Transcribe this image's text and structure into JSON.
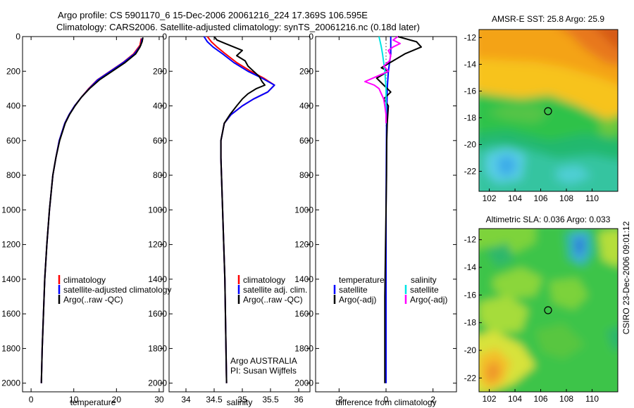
{
  "header": {
    "line1": "Argo profile: CS 5901170_6 15-Dec-2006 20061216_224 17.369S 106.595E",
    "line2": "Climatology: CARS2006. Satellite-adjusted climatology: synTS_20061216.nc (0.18d later)"
  },
  "side_label": "CSIRO 23-Dec-2006 09:01:12",
  "credits": {
    "line1": "Argo AUSTRALIA",
    "line2": "PI: Susan Wijffels"
  },
  "colors": {
    "climatology": "#ff0000",
    "satellite": "#0000ff",
    "argo": "#000000",
    "salinity_satellite": "#00e5e5",
    "salinity_argo": "#ff00ff"
  },
  "chart_data": [
    {
      "type": "line",
      "id": "temperature",
      "xlabel": "temperature",
      "ylabel": "",
      "xlim": [
        -2,
        31
      ],
      "ylim": [
        2050,
        0
      ],
      "y_reversed": true,
      "xticks": [
        0,
        10,
        20,
        30
      ],
      "yticks": [
        0,
        200,
        400,
        600,
        800,
        1000,
        1200,
        1400,
        1600,
        1800,
        2000
      ],
      "legend": {
        "position": "lower-left",
        "entries": [
          "climatology",
          "satellite-adjusted climatology",
          "Argo(..raw -QC)"
        ]
      },
      "series": [
        {
          "name": "climatology",
          "color": "#ff0000",
          "y": [
            10,
            50,
            100,
            150,
            200,
            250,
            300,
            350,
            400,
            450,
            500,
            600,
            700,
            800,
            1000,
            1200,
            1400,
            1600,
            1800,
            2000
          ],
          "x": [
            25.8,
            25.5,
            24.0,
            21.5,
            18.5,
            15.5,
            13.5,
            11.8,
            10.2,
            8.9,
            7.9,
            6.6,
            5.8,
            5.1,
            4.3,
            3.7,
            3.2,
            2.9,
            2.6,
            2.4
          ]
        },
        {
          "name": "satellite-adjusted climatology",
          "color": "#0000ff",
          "y": [
            10,
            50,
            100,
            150,
            200,
            250,
            300,
            350,
            400,
            450,
            500,
            600,
            700,
            800,
            1000,
            1200,
            1400,
            1600,
            1800,
            2000
          ],
          "x": [
            26.0,
            25.7,
            24.2,
            21.6,
            18.6,
            15.6,
            13.6,
            11.8,
            10.2,
            8.9,
            7.9,
            6.6,
            5.8,
            5.1,
            4.3,
            3.7,
            3.2,
            2.9,
            2.6,
            2.4
          ]
        },
        {
          "name": "Argo(..raw -QC)",
          "color": "#000000",
          "y": [
            5,
            30,
            60,
            100,
            150,
            200,
            250,
            300,
            350,
            400,
            450,
            500,
            600,
            700,
            800,
            1000,
            1200,
            1400,
            1600,
            1800,
            2000
          ],
          "x": [
            26.2,
            26.0,
            25.5,
            24.5,
            22.0,
            19.0,
            16.0,
            13.7,
            11.8,
            10.3,
            9.0,
            8.0,
            6.7,
            5.8,
            5.1,
            4.3,
            3.7,
            3.2,
            2.9,
            2.6,
            2.4
          ]
        }
      ]
    },
    {
      "type": "line",
      "id": "salinity",
      "xlabel": "salinity",
      "ylabel": "",
      "xlim": [
        33.7,
        36.2
      ],
      "ylim": [
        2050,
        0
      ],
      "y_reversed": true,
      "xticks": [
        34,
        34.5,
        35,
        35.5,
        36
      ],
      "yticks": [
        0,
        200,
        400,
        600,
        800,
        1000,
        1200,
        1400,
        1600,
        1800,
        2000
      ],
      "legend": {
        "position": "lower-left",
        "entries": [
          "climatology",
          "satellite adj. clim.",
          "Argo(..raw -QC)"
        ]
      },
      "series": [
        {
          "name": "climatology",
          "color": "#ff0000",
          "y": [
            0,
            30,
            60,
            100,
            150,
            200,
            240,
            280,
            320,
            360,
            400,
            450,
            500,
            600,
            700,
            800,
            1000,
            1200,
            1400,
            1600,
            1800,
            2000
          ],
          "x": [
            34.38,
            34.45,
            34.55,
            34.7,
            34.9,
            35.15,
            35.38,
            35.57,
            35.45,
            35.2,
            35.0,
            34.8,
            34.68,
            34.62,
            34.62,
            34.63,
            34.65,
            34.67,
            34.69,
            34.7,
            34.71,
            34.72
          ]
        },
        {
          "name": "satellite adj. clim.",
          "color": "#0000ff",
          "y": [
            0,
            30,
            60,
            100,
            150,
            200,
            240,
            280,
            320,
            360,
            400,
            450,
            500,
            600,
            700,
            800,
            1000,
            1200,
            1400,
            1600,
            1800,
            2000
          ],
          "x": [
            34.32,
            34.38,
            34.48,
            34.65,
            34.85,
            35.1,
            35.35,
            35.57,
            35.45,
            35.2,
            35.0,
            34.8,
            34.68,
            34.62,
            34.62,
            34.63,
            34.65,
            34.67,
            34.69,
            34.7,
            34.71,
            34.72
          ]
        },
        {
          "name": "Argo(..raw -QC)",
          "color": "#000000",
          "y": [
            0,
            20,
            40,
            60,
            80,
            110,
            140,
            170,
            200,
            230,
            260,
            280,
            300,
            330,
            360,
            400,
            450,
            500,
            600,
            700,
            800,
            1000,
            1200,
            1400,
            1600,
            1800,
            2000
          ],
          "x": [
            34.5,
            34.55,
            34.7,
            34.85,
            35.0,
            34.9,
            35.05,
            35.1,
            35.2,
            35.3,
            35.35,
            35.4,
            35.25,
            35.1,
            35.0,
            34.9,
            34.78,
            34.68,
            34.62,
            34.62,
            34.63,
            34.65,
            34.67,
            34.69,
            34.7,
            34.71,
            34.72
          ]
        }
      ]
    },
    {
      "type": "line",
      "id": "difference",
      "xlabel": "difference from climatology",
      "ylabel": "",
      "xlim": [
        -3,
        3
      ],
      "ylim": [
        2050,
        0
      ],
      "y_reversed": true,
      "xticks": [
        -2,
        0,
        2
      ],
      "yticks": [
        0,
        200,
        400,
        600,
        800,
        1000,
        1200,
        1400,
        1600,
        1800,
        2000
      ],
      "legend": {
        "position": "lower",
        "groups": [
          {
            "header": "temperature",
            "entries": [
              "satellite",
              "Argo(-adj)"
            ]
          },
          {
            "header": "salinity",
            "entries": [
              "satellite",
              "Argo(-adj)"
            ]
          }
        ]
      },
      "series": [
        {
          "name": "temperature satellite",
          "color": "#0000ff",
          "y": [
            0,
            50,
            100,
            150,
            200,
            300,
            500,
            1000,
            2000
          ],
          "x": [
            0.2,
            0.2,
            0.2,
            0.15,
            0.1,
            0.05,
            0.02,
            0.0,
            0.0
          ]
        },
        {
          "name": "temperature Argo(-adj)",
          "color": "#000000",
          "y": [
            0,
            30,
            60,
            100,
            140,
            180,
            200,
            240,
            280,
            320,
            360,
            400,
            500,
            600,
            800,
            1000,
            1500,
            2000
          ],
          "x": [
            0.5,
            1.3,
            1.5,
            0.8,
            0.3,
            -0.2,
            0.1,
            -0.4,
            -0.1,
            0.2,
            -0.1,
            0.1,
            0.05,
            0.03,
            0.02,
            0.0,
            -0.05,
            -0.05
          ]
        },
        {
          "name": "salinity satellite",
          "color": "#00e5e5",
          "y": [
            0,
            30,
            60,
            100,
            150,
            200,
            300,
            400,
            500
          ],
          "x": [
            -0.3,
            -0.25,
            -0.2,
            -0.15,
            -0.1,
            -0.05,
            0.0,
            0.0,
            0.0
          ]
        },
        {
          "name": "salinity Argo(-adj)",
          "color": "#ff00ff",
          "y": [
            0,
            20,
            40,
            60,
            80,
            110,
            140,
            170,
            200,
            230,
            260,
            280,
            300,
            330,
            360,
            400,
            450,
            500
          ],
          "x": [
            0.5,
            0.3,
            0.6,
            0.3,
            0.1,
            0.2,
            0.15,
            -0.1,
            0.1,
            -0.4,
            -0.9,
            -0.5,
            -0.3,
            -0.2,
            -0.1,
            -0.05,
            0.0,
            0.0
          ]
        }
      ]
    },
    {
      "type": "heatmap",
      "id": "sst_map",
      "title": "AMSR-E SST: 25.8 Argo: 25.9",
      "xlim": [
        101.2,
        112
      ],
      "ylim": [
        -23.5,
        -11.4
      ],
      "xticks": [
        102,
        104,
        106,
        108,
        110
      ],
      "yticks": [
        -12,
        -14,
        -16,
        -18,
        -20,
        -22
      ],
      "marker": {
        "lon": 106.595,
        "lat": -17.369
      }
    },
    {
      "type": "heatmap",
      "id": "sla_map",
      "title": "Altimetric SLA: 0.036 Argo: 0.033",
      "xlim": [
        101.2,
        112
      ],
      "ylim": [
        -23.0,
        -11.2
      ],
      "xticks": [
        102,
        104,
        106,
        108,
        110
      ],
      "yticks": [
        -12,
        -14,
        -16,
        -18,
        -20,
        -22
      ],
      "marker": {
        "lon": 106.595,
        "lat": -17.369
      }
    }
  ]
}
